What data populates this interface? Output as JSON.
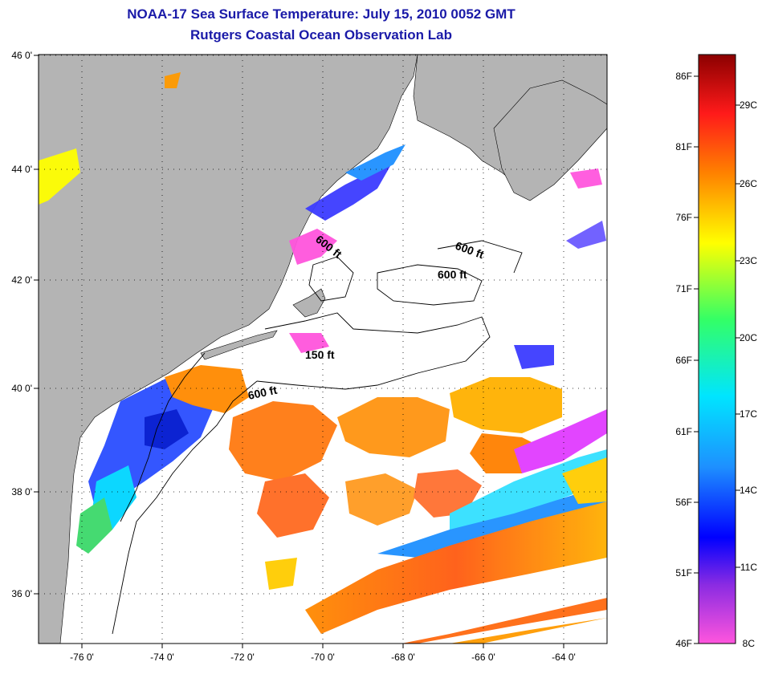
{
  "title_line1": "NOAA-17 Sea Surface Temperature:  July 15, 2010 0052 GMT",
  "title_line2": "Rutgers Coastal Ocean Observation Lab",
  "lat_ticks": [
    "46 0'",
    "44 0'",
    "42 0'",
    "40 0'",
    "38 0'",
    "36 0'"
  ],
  "lon_ticks": [
    "-76 0'",
    "-74 0'",
    "-72 0'",
    "-70 0'",
    "-68 0'",
    "-66 0'",
    "-64 0'"
  ],
  "contour_labels": [
    "600 ft",
    "600 ft",
    "600 ft",
    "150 ft",
    "600 ft"
  ],
  "colorbar": {
    "fahrenheit": [
      "86F",
      "81F",
      "76F",
      "71F",
      "66F",
      "61F",
      "56F",
      "51F",
      "46F"
    ],
    "celsius": [
      "29C",
      "26C",
      "23C",
      "20C",
      "17C",
      "14C",
      "11C",
      "8C"
    ]
  },
  "colors": {
    "land": "#b4b4b4",
    "no_data": "#ffffff",
    "title": "#1a1aa8"
  }
}
